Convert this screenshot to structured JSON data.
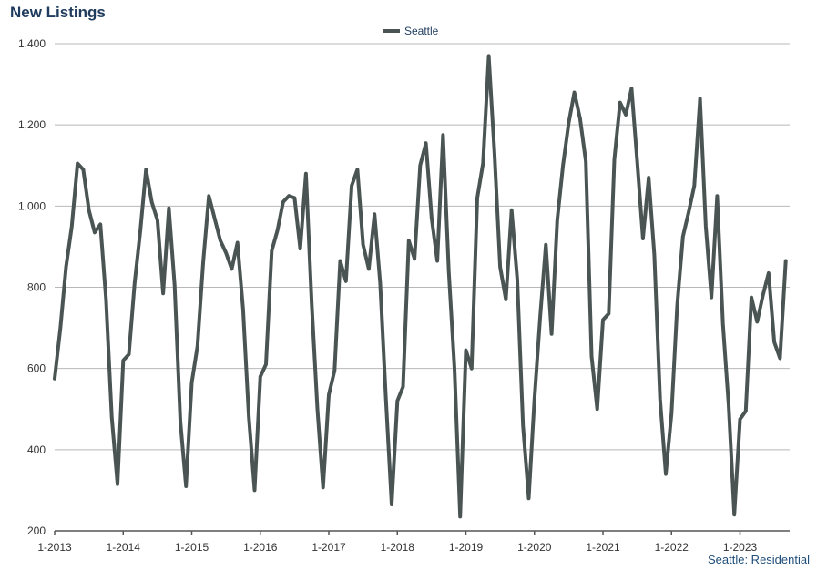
{
  "chart_data": {
    "type": "line",
    "title": "New Listings",
    "footnote": "Seattle: Residential",
    "xlabel": "",
    "ylabel": "",
    "ylim": [
      200,
      1400
    ],
    "yticks": [
      200,
      400,
      600,
      800,
      1000,
      1200,
      1400
    ],
    "ytick_labels": [
      "200",
      "400",
      "600",
      "800",
      "1,000",
      "1,200",
      "1,400"
    ],
    "xtick_labels": [
      "1-2013",
      "1-2014",
      "1-2015",
      "1-2016",
      "1-2017",
      "1-2018",
      "1-2019",
      "1-2020",
      "1-2021",
      "1-2022",
      "1-2023"
    ],
    "grid": true,
    "legend": "top-center",
    "line_color": "#4a5553",
    "start": "2013-01",
    "series": [
      {
        "name": "Seattle",
        "values": [
          575,
          700,
          850,
          950,
          1105,
          1090,
          990,
          935,
          955,
          770,
          480,
          315,
          620,
          635,
          810,
          940,
          1090,
          1010,
          965,
          785,
          995,
          805,
          470,
          310,
          565,
          655,
          860,
          1025,
          970,
          915,
          885,
          845,
          910,
          745,
          480,
          300,
          580,
          610,
          890,
          940,
          1010,
          1025,
          1020,
          895,
          1080,
          760,
          500,
          307,
          535,
          595,
          865,
          815,
          1050,
          1090,
          905,
          845,
          980,
          810,
          525,
          265,
          520,
          555,
          915,
          870,
          1100,
          1155,
          970,
          865,
          1175,
          840,
          600,
          235,
          645,
          600,
          1020,
          1105,
          1370,
          1130,
          850,
          770,
          990,
          820,
          460,
          280,
          525,
          725,
          905,
          685,
          965,
          1100,
          1205,
          1280,
          1215,
          1110,
          630,
          500,
          720,
          735,
          1115,
          1255,
          1225,
          1290,
          1110,
          920,
          1070,
          880,
          525,
          340,
          490,
          755,
          925,
          985,
          1050,
          1265,
          950,
          775,
          1025,
          710,
          510,
          240,
          475,
          495,
          775,
          715,
          780,
          835,
          665,
          625,
          865
        ]
      }
    ]
  }
}
